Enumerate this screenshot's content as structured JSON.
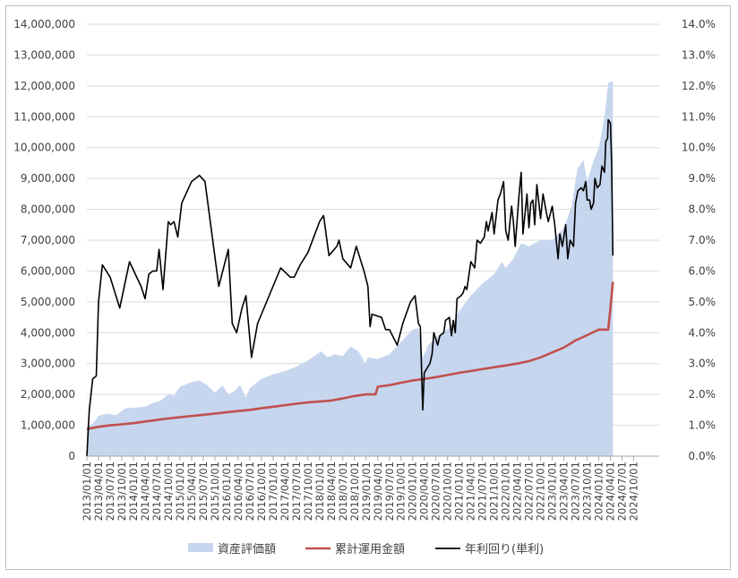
{
  "chart_data": {
    "type": "area+line",
    "title": "",
    "xlabel": "",
    "ylabel": "",
    "x_ticks": [
      "2013/01/01",
      "2013/04/01",
      "2013/07/01",
      "2013/10/01",
      "2014/01/01",
      "2014/04/01",
      "2014/07/01",
      "2014/10/01",
      "2015/01/01",
      "2015/04/01",
      "2015/07/01",
      "2015/10/01",
      "2016/01/01",
      "2016/04/01",
      "2016/07/01",
      "2016/10/01",
      "2017/01/01",
      "2017/04/01",
      "2017/07/01",
      "2017/10/01",
      "2018/01/01",
      "2018/04/01",
      "2018/07/01",
      "2018/10/01",
      "2019/01/01",
      "2019/04/01",
      "2019/07/01",
      "2019/10/01",
      "2020/01/01",
      "2020/04/01",
      "2020/07/01",
      "2020/10/01",
      "2021/01/01",
      "2021/04/01",
      "2021/07/01",
      "2021/10/01",
      "2022/01/01",
      "2022/04/01",
      "2022/07/01",
      "2022/10/01",
      "2023/01/01",
      "2023/04/01",
      "2023/07/01",
      "2023/10/01",
      "2024/01/01",
      "2024/04/01",
      "2024/07/01",
      "2024/10/01"
    ],
    "y_left": {
      "ylim": [
        0,
        14000000
      ],
      "ticks": [
        "0",
        "1,000,000",
        "2,000,000",
        "3,000,000",
        "4,000,000",
        "5,000,000",
        "6,000,000",
        "7,000,000",
        "8,000,000",
        "9,000,000",
        "10,000,000",
        "11,000,000",
        "12,000,000",
        "13,000,000",
        "14,000,000"
      ]
    },
    "y_right": {
      "ylim": [
        0,
        14
      ],
      "unit": "%",
      "ticks": [
        "0.0%",
        "1.0%",
        "2.0%",
        "3.0%",
        "4.0%",
        "5.0%",
        "6.0%",
        "7.0%",
        "8.0%",
        "9.0%",
        "10.0%",
        "11.0%",
        "12.0%",
        "13.0%",
        "14.0%"
      ]
    },
    "legend_position": "bottom",
    "series": [
      {
        "name": "資産評価額",
        "type": "area",
        "axis": "left",
        "color": "#c6d6ee",
        "points": [
          [
            "2013/01/01",
            950000
          ],
          [
            "2013/02/15",
            1050000
          ],
          [
            "2013/04/01",
            1300000
          ],
          [
            "2013/06/01",
            1370000
          ],
          [
            "2013/08/15",
            1330000
          ],
          [
            "2013/11/01",
            1550000
          ],
          [
            "2014/02/01",
            1580000
          ],
          [
            "2014/04/01",
            1600000
          ],
          [
            "2014/06/01",
            1720000
          ],
          [
            "2014/08/01",
            1800000
          ],
          [
            "2014/10/01",
            2000000
          ],
          [
            "2014/11/15",
            1950000
          ],
          [
            "2015/01/01",
            2250000
          ],
          [
            "2015/04/01",
            2400000
          ],
          [
            "2015/06/01",
            2450000
          ],
          [
            "2015/08/01",
            2300000
          ],
          [
            "2015/10/01",
            2050000
          ],
          [
            "2015/12/01",
            2300000
          ],
          [
            "2016/01/15",
            2000000
          ],
          [
            "2016/03/01",
            2100000
          ],
          [
            "2016/04/15",
            2300000
          ],
          [
            "2016/06/01",
            1900000
          ],
          [
            "2016/07/01",
            2200000
          ],
          [
            "2016/10/01",
            2500000
          ],
          [
            "2017/01/01",
            2650000
          ],
          [
            "2017/04/01",
            2750000
          ],
          [
            "2017/07/01",
            2900000
          ],
          [
            "2017/10/01",
            3100000
          ],
          [
            "2018/01/15",
            3400000
          ],
          [
            "2018/03/01",
            3200000
          ],
          [
            "2018/05/01",
            3300000
          ],
          [
            "2018/07/01",
            3250000
          ],
          [
            "2018/09/01",
            3550000
          ],
          [
            "2018/11/01",
            3400000
          ],
          [
            "2018/12/25",
            3000000
          ],
          [
            "2019/01/15",
            3200000
          ],
          [
            "2019/04/01",
            3150000
          ],
          [
            "2019/07/01",
            3300000
          ],
          [
            "2019/10/01",
            3700000
          ],
          [
            "2020/01/01",
            4100000
          ],
          [
            "2020/02/15",
            4150000
          ],
          [
            "2020/03/20",
            3200000
          ],
          [
            "2020/05/01",
            3600000
          ],
          [
            "2020/08/01",
            3950000
          ],
          [
            "2020/11/01",
            4200000
          ],
          [
            "2021/01/01",
            4700000
          ],
          [
            "2021/04/01",
            5200000
          ],
          [
            "2021/07/01",
            5600000
          ],
          [
            "2021/10/01",
            5900000
          ],
          [
            "2021/12/01",
            6300000
          ],
          [
            "2022/01/01",
            6100000
          ],
          [
            "2022/03/01",
            6400000
          ],
          [
            "2022/05/01",
            6900000
          ],
          [
            "2022/07/01",
            6800000
          ],
          [
            "2022/10/01",
            7000000
          ],
          [
            "2023/01/01",
            7000000
          ],
          [
            "2023/04/01",
            7400000
          ],
          [
            "2023/06/01",
            8100000
          ],
          [
            "2023/07/15",
            9300000
          ],
          [
            "2023/09/01",
            9600000
          ],
          [
            "2023/10/01",
            8900000
          ],
          [
            "2023/11/15",
            9500000
          ],
          [
            "2024/01/01",
            10000000
          ],
          [
            "2024/02/15",
            11000000
          ],
          [
            "2024/03/15",
            12100000
          ],
          [
            "2024/04/20",
            12150000
          ]
        ]
      },
      {
        "name": "累計運用金額",
        "type": "line",
        "axis": "left",
        "color": "#c0504d",
        "points": [
          [
            "2013/01/01",
            880000
          ],
          [
            "2013/04/01",
            950000
          ],
          [
            "2013/07/01",
            1000000
          ],
          [
            "2013/10/01",
            1030000
          ],
          [
            "2014/01/01",
            1070000
          ],
          [
            "2014/04/01",
            1120000
          ],
          [
            "2014/07/01",
            1170000
          ],
          [
            "2014/10/01",
            1220000
          ],
          [
            "2015/01/01",
            1260000
          ],
          [
            "2015/04/01",
            1300000
          ],
          [
            "2015/07/01",
            1340000
          ],
          [
            "2015/10/01",
            1380000
          ],
          [
            "2016/01/01",
            1420000
          ],
          [
            "2016/04/01",
            1460000
          ],
          [
            "2016/07/01",
            1500000
          ],
          [
            "2016/10/01",
            1550000
          ],
          [
            "2017/01/01",
            1600000
          ],
          [
            "2017/04/01",
            1650000
          ],
          [
            "2017/07/01",
            1700000
          ],
          [
            "2017/10/01",
            1740000
          ],
          [
            "2018/01/01",
            1770000
          ],
          [
            "2018/04/01",
            1800000
          ],
          [
            "2018/07/01",
            1870000
          ],
          [
            "2018/10/01",
            1950000
          ],
          [
            "2019/01/01",
            2000000
          ],
          [
            "2019/03/15",
            2000000
          ],
          [
            "2019/04/01",
            2250000
          ],
          [
            "2019/07/01",
            2300000
          ],
          [
            "2019/10/01",
            2380000
          ],
          [
            "2020/01/01",
            2450000
          ],
          [
            "2020/04/01",
            2500000
          ],
          [
            "2020/07/01",
            2560000
          ],
          [
            "2020/10/01",
            2630000
          ],
          [
            "2021/01/01",
            2700000
          ],
          [
            "2021/04/01",
            2760000
          ],
          [
            "2021/07/01",
            2820000
          ],
          [
            "2021/10/01",
            2880000
          ],
          [
            "2022/01/01",
            2940000
          ],
          [
            "2022/04/01",
            3000000
          ],
          [
            "2022/07/01",
            3080000
          ],
          [
            "2022/10/01",
            3200000
          ],
          [
            "2023/01/01",
            3360000
          ],
          [
            "2023/04/01",
            3520000
          ],
          [
            "2023/07/01",
            3750000
          ],
          [
            "2023/10/01",
            3920000
          ],
          [
            "2024/01/01",
            4100000
          ],
          [
            "2024/03/15",
            4100000
          ],
          [
            "2024/04/01",
            4800000
          ],
          [
            "2024/04/20",
            5650000
          ]
        ]
      },
      {
        "name": "年利回り(単利)",
        "type": "line",
        "axis": "right",
        "color": "#000000",
        "points": [
          [
            "2013/01/01",
            0.0
          ],
          [
            "2013/01/20",
            1.5
          ],
          [
            "2013/02/15",
            2.5
          ],
          [
            "2013/03/15",
            2.6
          ],
          [
            "2013/04/01",
            5.0
          ],
          [
            "2013/05/01",
            6.2
          ],
          [
            "2013/07/01",
            5.8
          ],
          [
            "2013/09/15",
            4.8
          ],
          [
            "2013/12/01",
            6.3
          ],
          [
            "2014/03/01",
            5.5
          ],
          [
            "2014/04/01",
            5.1
          ],
          [
            "2014/05/01",
            5.9
          ],
          [
            "2014/06/01",
            6.0
          ],
          [
            "2014/07/01",
            6.0
          ],
          [
            "2014/07/20",
            6.7
          ],
          [
            "2014/08/20",
            5.4
          ],
          [
            "2014/10/01",
            7.6
          ],
          [
            "2014/10/20",
            7.5
          ],
          [
            "2014/11/15",
            7.6
          ],
          [
            "2014/12/15",
            7.1
          ],
          [
            "2015/01/15",
            8.2
          ],
          [
            "2015/04/01",
            8.9
          ],
          [
            "2015/06/01",
            9.1
          ],
          [
            "2015/07/15",
            8.9
          ],
          [
            "2015/11/01",
            5.5
          ],
          [
            "2016/01/15",
            6.7
          ],
          [
            "2016/02/15",
            4.3
          ],
          [
            "2016/03/20",
            4.0
          ],
          [
            "2016/05/01",
            4.8
          ],
          [
            "2016/06/01",
            5.2
          ],
          [
            "2016/07/15",
            3.2
          ],
          [
            "2016/09/01",
            4.3
          ],
          [
            "2017/03/01",
            6.1
          ],
          [
            "2017/05/15",
            5.8
          ],
          [
            "2017/06/15",
            5.8
          ],
          [
            "2017/08/01",
            6.2
          ],
          [
            "2017/10/01",
            6.6
          ],
          [
            "2018/01/01",
            7.6
          ],
          [
            "2018/02/01",
            7.8
          ],
          [
            "2018/03/15",
            6.5
          ],
          [
            "2018/05/15",
            6.8
          ],
          [
            "2018/06/01",
            7.0
          ],
          [
            "2018/07/01",
            6.4
          ],
          [
            "2018/09/01",
            6.1
          ],
          [
            "2018/10/15",
            6.8
          ],
          [
            "2018/12/15",
            6.0
          ],
          [
            "2019/01/15",
            5.5
          ],
          [
            "2019/02/01",
            4.2
          ],
          [
            "2019/02/15",
            4.6
          ],
          [
            "2019/05/01",
            4.5
          ],
          [
            "2019/06/01",
            4.1
          ],
          [
            "2019/07/01",
            4.1
          ],
          [
            "2019/09/01",
            3.6
          ],
          [
            "2019/10/15",
            4.3
          ],
          [
            "2019/12/15",
            5.0
          ],
          [
            "2020/01/20",
            5.2
          ],
          [
            "2020/02/15",
            4.3
          ],
          [
            "2020/03/01",
            4.2
          ],
          [
            "2020/03/20",
            1.5
          ],
          [
            "2020/04/01",
            2.7
          ],
          [
            "2020/05/15",
            3.0
          ],
          [
            "2020/06/01",
            3.3
          ],
          [
            "2020/06/15",
            4.0
          ],
          [
            "2020/07/15",
            3.6
          ],
          [
            "2020/08/01",
            3.9
          ],
          [
            "2020/09/01",
            4.0
          ],
          [
            "2020/09/15",
            4.4
          ],
          [
            "2020/10/15",
            4.5
          ],
          [
            "2020/11/01",
            3.9
          ],
          [
            "2020/11/15",
            4.4
          ],
          [
            "2020/12/01",
            4.0
          ],
          [
            "2020/12/15",
            5.1
          ],
          [
            "2021/01/15",
            5.2
          ],
          [
            "2021/02/01",
            5.3
          ],
          [
            "2021/02/15",
            5.5
          ],
          [
            "2021/03/01",
            5.4
          ],
          [
            "2021/04/01",
            6.3
          ],
          [
            "2021/05/01",
            6.1
          ],
          [
            "2021/05/20",
            7.0
          ],
          [
            "2021/06/15",
            6.9
          ],
          [
            "2021/07/15",
            7.1
          ],
          [
            "2021/08/01",
            7.6
          ],
          [
            "2021/08/15",
            7.3
          ],
          [
            "2021/09/15",
            7.9
          ],
          [
            "2021/10/01",
            7.2
          ],
          [
            "2021/11/01",
            8.3
          ],
          [
            "2021/11/20",
            8.5
          ],
          [
            "2021/12/15",
            8.9
          ],
          [
            "2022/01/01",
            7.3
          ],
          [
            "2022/01/20",
            7.0
          ],
          [
            "2022/02/15",
            8.1
          ],
          [
            "2022/03/01",
            7.6
          ],
          [
            "2022/03/15",
            6.8
          ],
          [
            "2022/04/15",
            8.5
          ],
          [
            "2022/05/01",
            9.2
          ],
          [
            "2022/05/15",
            7.2
          ],
          [
            "2022/06/15",
            8.5
          ],
          [
            "2022/07/01",
            7.4
          ],
          [
            "2022/07/15",
            8.2
          ],
          [
            "2022/08/01",
            8.3
          ],
          [
            "2022/08/15",
            7.5
          ],
          [
            "2022/09/01",
            8.8
          ],
          [
            "2022/10/01",
            7.7
          ],
          [
            "2022/10/20",
            8.5
          ],
          [
            "2022/11/15",
            7.9
          ],
          [
            "2022/12/01",
            7.6
          ],
          [
            "2023/01/01",
            8.1
          ],
          [
            "2023/01/20",
            7.5
          ],
          [
            "2023/02/15",
            6.4
          ],
          [
            "2023/03/01",
            7.2
          ],
          [
            "2023/03/20",
            6.8
          ],
          [
            "2023/04/15",
            7.5
          ],
          [
            "2023/05/01",
            6.4
          ],
          [
            "2023/05/20",
            7.0
          ],
          [
            "2023/06/15",
            6.8
          ],
          [
            "2023/07/01",
            8.2
          ],
          [
            "2023/07/20",
            8.6
          ],
          [
            "2023/08/15",
            8.7
          ],
          [
            "2023/09/01",
            8.6
          ],
          [
            "2023/09/20",
            8.9
          ],
          [
            "2023/10/01",
            8.3
          ],
          [
            "2023/10/20",
            8.3
          ],
          [
            "2023/11/01",
            8.0
          ],
          [
            "2023/11/20",
            8.2
          ],
          [
            "2023/12/01",
            9.0
          ],
          [
            "2023/12/20",
            8.7
          ],
          [
            "2024/01/10",
            8.8
          ],
          [
            "2024/01/25",
            9.4
          ],
          [
            "2024/02/15",
            9.2
          ],
          [
            "2024/02/25",
            10.2
          ],
          [
            "2024/03/10",
            10.3
          ],
          [
            "2024/03/15",
            10.9
          ],
          [
            "2024/04/01",
            10.8
          ],
          [
            "2024/04/10",
            9.5
          ],
          [
            "2024/04/20",
            6.5
          ]
        ]
      }
    ]
  }
}
